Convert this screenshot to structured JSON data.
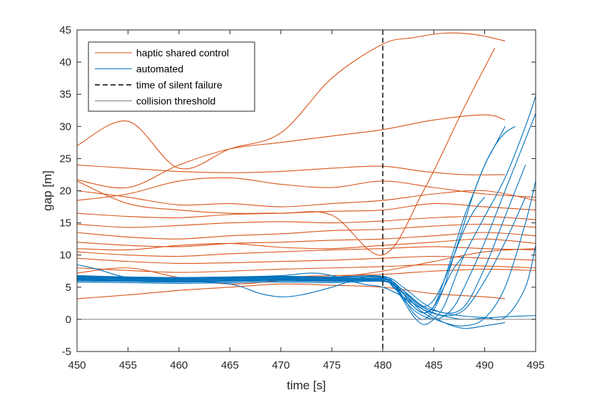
{
  "chart_data": {
    "type": "line",
    "title": "",
    "xlabel": "time [s]",
    "ylabel": "gap [m]",
    "xlim": [
      450,
      495
    ],
    "ylim": [
      -5,
      45
    ],
    "xticks": [
      450,
      455,
      460,
      465,
      470,
      475,
      480,
      485,
      490,
      495
    ],
    "yticks": [
      -5,
      0,
      5,
      10,
      15,
      20,
      25,
      30,
      35,
      40,
      45
    ],
    "colors": {
      "haptic": "#d95319",
      "automated": "#0072bd",
      "failure": "#000000",
      "threshold": "#808080",
      "axis": "#262626"
    },
    "legend": {
      "position": "top-left",
      "entries": [
        {
          "label": "haptic shared control",
          "style": "haptic"
        },
        {
          "label": "automated",
          "style": "automated"
        },
        {
          "label": "time of silent failure",
          "style": "failure"
        },
        {
          "label": "collision threshold",
          "style": "threshold"
        }
      ]
    },
    "failure_time": 480,
    "collision_threshold": 0,
    "series": [
      {
        "name": "haptic shared control",
        "group": "haptic",
        "x": [
          450,
          455,
          460,
          465,
          470,
          475,
          480,
          483,
          486,
          489,
          492
        ],
        "y": [
          27,
          30.8,
          23.5,
          26.5,
          29,
          37.5,
          42.8,
          43.8,
          44.5,
          44.3,
          43.3
        ]
      },
      {
        "name": "haptic shared control",
        "group": "haptic",
        "x": [
          450,
          455,
          460,
          465,
          470,
          475,
          480,
          484,
          488,
          492
        ],
        "y": [
          24,
          23.5,
          23,
          22.8,
          23,
          23.5,
          23.8,
          23,
          22.5,
          22.5
        ]
      },
      {
        "name": "haptic shared control",
        "group": "haptic",
        "x": [
          450,
          455,
          460,
          465,
          470,
          475,
          480,
          485,
          490,
          492
        ],
        "y": [
          21.7,
          20.5,
          24,
          26.5,
          27.5,
          28.5,
          29.5,
          31,
          31.8,
          31
        ]
      },
      {
        "name": "haptic shared control",
        "group": "haptic",
        "x": [
          450,
          455,
          460,
          465,
          470,
          475,
          480,
          485,
          490,
          495
        ],
        "y": [
          20,
          19,
          17.8,
          18,
          17.5,
          18,
          18.5,
          19.5,
          20,
          18.5
        ]
      },
      {
        "name": "haptic shared control",
        "group": "haptic",
        "x": [
          450,
          455,
          460,
          465,
          470,
          475,
          480,
          485,
          490,
          495
        ],
        "y": [
          16.5,
          16,
          15.8,
          16.3,
          16.5,
          16.8,
          17,
          18,
          17.5,
          17
        ]
      },
      {
        "name": "haptic shared control",
        "group": "haptic",
        "x": [
          450,
          455,
          460,
          465,
          470,
          475,
          480,
          485,
          490,
          495
        ],
        "y": [
          14.8,
          14.3,
          14.6,
          15,
          15.2,
          15,
          15.3,
          15.8,
          16,
          15.5
        ]
      },
      {
        "name": "haptic shared control",
        "group": "haptic",
        "x": [
          450,
          455,
          460,
          465,
          470,
          475,
          480,
          485,
          490,
          495
        ],
        "y": [
          12,
          11.5,
          11.3,
          11.8,
          12,
          12.3,
          12.5,
          13,
          13.5,
          13
        ]
      },
      {
        "name": "haptic shared control",
        "group": "haptic",
        "x": [
          450,
          455,
          460,
          465,
          470,
          475,
          480,
          485,
          490,
          495
        ],
        "y": [
          10.5,
          10,
          9.8,
          10.2,
          10.5,
          10.8,
          11,
          11.3,
          11,
          10.8
        ]
      },
      {
        "name": "haptic shared control",
        "group": "haptic",
        "x": [
          450,
          455,
          460,
          465,
          470,
          475,
          480,
          485,
          490,
          495
        ],
        "y": [
          9.5,
          9,
          8.7,
          8.8,
          9,
          9.2,
          9.5,
          9.8,
          9.5,
          9.2
        ]
      },
      {
        "name": "haptic shared control",
        "group": "haptic",
        "x": [
          450,
          455,
          460,
          465,
          470,
          475,
          480,
          485,
          490,
          495
        ],
        "y": [
          8,
          7.6,
          7.3,
          7.5,
          7.8,
          8,
          8.2,
          8.5,
          8.3,
          8
        ]
      },
      {
        "name": "haptic shared control",
        "group": "haptic",
        "x": [
          450,
          455,
          460,
          465,
          470,
          475,
          480,
          485,
          490,
          495
        ],
        "y": [
          6.8,
          6.5,
          6.2,
          6.4,
          6.6,
          6.8,
          7,
          7.5,
          7.8,
          7.6
        ]
      },
      {
        "name": "haptic shared control",
        "group": "haptic",
        "x": [
          450,
          455,
          460,
          465,
          470,
          475,
          480,
          485,
          490,
          492
        ],
        "y": [
          3.2,
          3.8,
          4.5,
          5,
          5.5,
          5.3,
          5,
          4,
          3.5,
          3.2
        ]
      },
      {
        "name": "haptic shared control",
        "group": "haptic",
        "x": [
          450,
          455,
          460,
          465,
          470,
          475,
          480,
          484,
          488,
          491
        ],
        "y": [
          21.5,
          18,
          17,
          16.5,
          16.5,
          16.2,
          10,
          20,
          33,
          42.2
        ]
      },
      {
        "name": "haptic shared control",
        "group": "haptic",
        "x": [
          450,
          455,
          460,
          465,
          470,
          475,
          480,
          485,
          490,
          495
        ],
        "y": [
          18.5,
          19.5,
          21.5,
          22,
          21,
          20.5,
          21.5,
          20.5,
          19.5,
          19
        ]
      },
      {
        "name": "haptic shared control",
        "group": "haptic",
        "x": [
          450,
          455,
          460,
          465,
          470,
          475,
          480,
          485,
          490,
          495
        ],
        "y": [
          13.5,
          12.8,
          12.5,
          13,
          13.3,
          13.8,
          14,
          14.5,
          14.8,
          14.3
        ]
      },
      {
        "name": "haptic shared control",
        "group": "haptic",
        "x": [
          450,
          455,
          460,
          465,
          470,
          475,
          480,
          485,
          490,
          495
        ],
        "y": [
          11,
          10.8,
          11.5,
          11.8,
          11.2,
          11,
          11.5,
          12,
          12.5,
          11.8
        ]
      },
      {
        "name": "haptic shared control",
        "group": "haptic",
        "x": [
          450,
          455,
          460,
          465,
          470,
          475,
          480,
          485,
          490,
          495
        ],
        "y": [
          7.2,
          8,
          6.5,
          5.5,
          6,
          6.5,
          7.5,
          9,
          10.5,
          11
        ]
      },
      {
        "name": "automated",
        "group": "automated",
        "x": [
          450,
          455,
          460,
          465,
          470,
          475,
          480,
          481,
          482,
          483,
          484,
          485,
          486,
          487,
          488,
          489,
          490,
          491,
          492
        ],
        "y": [
          6.3,
          6.2,
          6.1,
          6.2,
          6.3,
          6.2,
          6.3,
          5.5,
          3.5,
          1,
          0,
          1.5,
          5,
          10,
          15,
          20,
          24,
          27,
          30
        ]
      },
      {
        "name": "automated",
        "group": "automated",
        "x": [
          450,
          455,
          460,
          465,
          470,
          475,
          480,
          481,
          482,
          483,
          484,
          485,
          486,
          487,
          488,
          489,
          490,
          491,
          492,
          493
        ],
        "y": [
          6.6,
          6.5,
          6.4,
          6.5,
          6.6,
          6.5,
          6.6,
          5.8,
          4,
          2,
          1,
          2,
          6,
          11,
          16,
          20,
          24,
          27,
          29,
          30
        ]
      },
      {
        "name": "automated",
        "group": "automated",
        "x": [
          450,
          455,
          460,
          465,
          470,
          475,
          480,
          481,
          482,
          483,
          484,
          485,
          486,
          487,
          488,
          490,
          492,
          494,
          495
        ],
        "y": [
          6,
          5.9,
          5.8,
          5.9,
          6,
          5.9,
          6,
          5.2,
          3,
          0.5,
          -0.8,
          0,
          2,
          6,
          10,
          16,
          22,
          30,
          34.7
        ]
      },
      {
        "name": "automated",
        "group": "automated",
        "x": [
          450,
          455,
          460,
          465,
          470,
          475,
          480,
          481,
          482,
          483,
          484,
          485,
          486,
          487,
          488,
          490,
          492,
          494,
          495
        ],
        "y": [
          6.4,
          6.3,
          6.2,
          6.3,
          6.4,
          6.3,
          6.4,
          5.5,
          3.2,
          1.5,
          0.5,
          0,
          0.5,
          2,
          5,
          12,
          20,
          28,
          32
        ]
      },
      {
        "name": "automated",
        "group": "automated",
        "x": [
          450,
          455,
          460,
          465,
          470,
          475,
          480,
          482,
          484,
          486,
          488,
          490,
          492,
          494,
          495
        ],
        "y": [
          6.1,
          6,
          5.9,
          6,
          6.1,
          6,
          6.1,
          4,
          1,
          -0.5,
          -1,
          0.2,
          5,
          15,
          21.5
        ]
      },
      {
        "name": "automated",
        "group": "automated",
        "x": [
          450,
          455,
          460,
          465,
          470,
          475,
          480,
          482,
          484,
          486,
          488,
          490,
          492,
          494,
          495
        ],
        "y": [
          6.5,
          6.4,
          6.3,
          6.4,
          6.5,
          6.4,
          6.5,
          4.5,
          2,
          1,
          0.5,
          0.3,
          0.3,
          5,
          11.5
        ]
      },
      {
        "name": "automated",
        "group": "automated",
        "x": [
          450,
          452,
          455,
          460,
          465,
          468,
          470,
          472,
          475,
          478,
          480,
          482,
          484,
          486,
          488,
          490,
          492
        ],
        "y": [
          8.5,
          7.8,
          6.5,
          6,
          5.5,
          4,
          3.5,
          3.8,
          5,
          6.5,
          6.5,
          4,
          1.5,
          -0.5,
          -1.4,
          -1,
          -0.5
        ]
      },
      {
        "name": "automated",
        "group": "automated",
        "x": [
          450,
          455,
          460,
          465,
          470,
          473,
          475,
          478,
          480,
          482,
          484,
          486,
          488,
          490,
          492,
          495
        ],
        "y": [
          6.8,
          6.6,
          6.5,
          6.6,
          6.8,
          7.2,
          6.8,
          5.5,
          5,
          3.5,
          1.5,
          0.5,
          0,
          0.2,
          0.4,
          0.6
        ]
      },
      {
        "name": "automated",
        "group": "automated",
        "x": [
          450,
          455,
          460,
          465,
          470,
          475,
          480,
          481,
          482,
          483,
          484,
          485,
          486,
          487,
          488,
          489,
          490
        ],
        "y": [
          6.2,
          6.1,
          6,
          6.1,
          6.2,
          6.1,
          6.2,
          5.6,
          4.5,
          3,
          2,
          3,
          6,
          10,
          14,
          17,
          19
        ]
      },
      {
        "name": "automated",
        "group": "automated",
        "x": [
          450,
          455,
          460,
          465,
          470,
          475,
          480,
          481,
          482,
          483,
          484,
          485,
          486,
          487,
          488
        ],
        "y": [
          5.8,
          5.7,
          5.6,
          5.7,
          5.8,
          5.7,
          5.9,
          5,
          3.5,
          2,
          1,
          2,
          5,
          8,
          10
        ]
      },
      {
        "name": "automated",
        "group": "automated",
        "x": [
          450,
          455,
          460,
          465,
          470,
          475,
          480,
          482,
          484,
          486,
          488,
          490,
          492,
          494
        ],
        "y": [
          6.7,
          6.6,
          6.5,
          6.6,
          6.7,
          6.6,
          6.7,
          5,
          2.5,
          1,
          2,
          8,
          16,
          24
        ]
      },
      {
        "name": "automated",
        "group": "automated",
        "x": [
          450,
          455,
          460,
          465,
          470,
          475,
          480,
          482,
          484,
          486,
          488,
          490,
          492,
          494
        ],
        "y": [
          6.0,
          5.9,
          5.8,
          5.9,
          6.0,
          5.9,
          6.0,
          4.2,
          1.8,
          0.6,
          1.5,
          6,
          12,
          19
        ]
      }
    ]
  }
}
